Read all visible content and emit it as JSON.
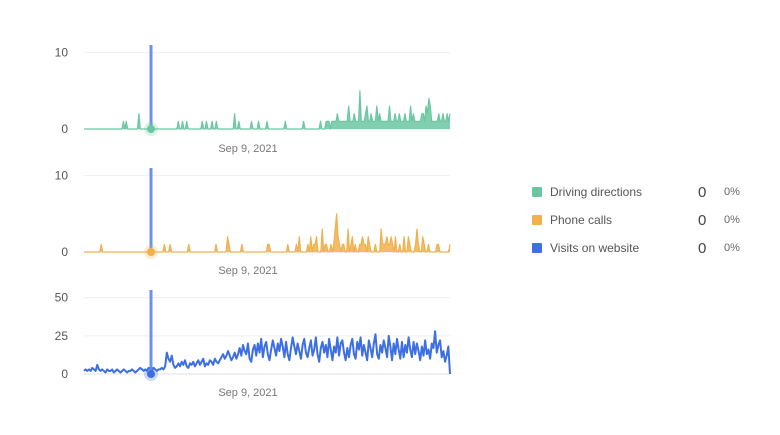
{
  "colors": {
    "driving": "#6cc6a2",
    "phone": "#f0b04e",
    "website": "#3d6fe3",
    "cursor": "#6b93e6"
  },
  "legend": [
    {
      "label": "Driving directions",
      "count": "0",
      "pct": "0%",
      "color": "#6cc6a2"
    },
    {
      "label": "Phone calls",
      "count": "0",
      "pct": "0%",
      "color": "#f0b04e"
    },
    {
      "label": "Visits on website",
      "count": "0",
      "pct": "0%",
      "color": "#3d6fe3"
    }
  ],
  "hover_date": "Sep 9, 2021",
  "chart_data": [
    {
      "type": "area",
      "series": [
        {
          "name": "Driving directions",
          "values": [
            0,
            0,
            0,
            0,
            0,
            0,
            0,
            0,
            0,
            0,
            0,
            0,
            0,
            0,
            0,
            0,
            0,
            0,
            0,
            0,
            0,
            0,
            0,
            0,
            0,
            0,
            0,
            0,
            1,
            0,
            1,
            0,
            0,
            0,
            0,
            0,
            0,
            0,
            0,
            2,
            0,
            0,
            0,
            0,
            0,
            0,
            0,
            0,
            0,
            0,
            0,
            0,
            0,
            0,
            0,
            0,
            0,
            0,
            0,
            0,
            0,
            0,
            0,
            0,
            0,
            0,
            0,
            1,
            0,
            0,
            1,
            0,
            0,
            1,
            0,
            0,
            0,
            0,
            0,
            0,
            0,
            0,
            0,
            0,
            1,
            0,
            0,
            1,
            0,
            0,
            0,
            1,
            0,
            0,
            1,
            0,
            0,
            0,
            0,
            0,
            0,
            0,
            0,
            0,
            0,
            0,
            0,
            2,
            0,
            0,
            1,
            0,
            0,
            0,
            0,
            0,
            0,
            0,
            0,
            1,
            0,
            0,
            0,
            0,
            1,
            0,
            0,
            0,
            0,
            0,
            1,
            0,
            0,
            0,
            0,
            0,
            0,
            0,
            0,
            0,
            0,
            0,
            0,
            1,
            0,
            0,
            0,
            0,
            0,
            0,
            0,
            0,
            0,
            0,
            0,
            0,
            1,
            0,
            0,
            0,
            0,
            0,
            0,
            0,
            0,
            0,
            0,
            0,
            1,
            0,
            0,
            0,
            1,
            1,
            1,
            0,
            1,
            1,
            1,
            1,
            2,
            1,
            1,
            1,
            1,
            1,
            1,
            1,
            3,
            1,
            1,
            1,
            2,
            1,
            1,
            1,
            5,
            1,
            1,
            1,
            2,
            3,
            1,
            1,
            2,
            1,
            1,
            1,
            3,
            1,
            2,
            1,
            1,
            1,
            1,
            1,
            1,
            3,
            1,
            1,
            1,
            2,
            1,
            1,
            2,
            1,
            1,
            1,
            2,
            1,
            1,
            1,
            3,
            1,
            2,
            1,
            1,
            1,
            1,
            1,
            2,
            2,
            1,
            3,
            2,
            4,
            3,
            1,
            1,
            1,
            1,
            1,
            2,
            1,
            1,
            2,
            1,
            1,
            2,
            1,
            2
          ]
        }
      ],
      "xlabel": "Sep 9, 2021",
      "yticks": [
        0,
        10
      ],
      "ylim": [
        0,
        11
      ]
    },
    {
      "type": "area",
      "series": [
        {
          "name": "Phone calls",
          "values": [
            0,
            0,
            0,
            0,
            0,
            0,
            0,
            0,
            0,
            0,
            0,
            0,
            1,
            0,
            0,
            0,
            0,
            0,
            0,
            0,
            0,
            0,
            0,
            0,
            0,
            0,
            0,
            0,
            0,
            0,
            0,
            0,
            0,
            0,
            0,
            0,
            0,
            0,
            0,
            0,
            0,
            0,
            0,
            0,
            0,
            0,
            0,
            0,
            0,
            0,
            0,
            0,
            0,
            0,
            0,
            0,
            1,
            0,
            0,
            0,
            1,
            0,
            0,
            0,
            0,
            0,
            0,
            0,
            0,
            0,
            0,
            0,
            0,
            1,
            0,
            0,
            0,
            0,
            0,
            0,
            0,
            0,
            0,
            0,
            0,
            0,
            0,
            0,
            0,
            0,
            0,
            0,
            1,
            0,
            0,
            0,
            0,
            0,
            0,
            0,
            2,
            1,
            0,
            0,
            0,
            0,
            0,
            0,
            0,
            0,
            1,
            0,
            0,
            0,
            0,
            0,
            0,
            0,
            0,
            0,
            0,
            0,
            0,
            0,
            0,
            0,
            0,
            0,
            1,
            1,
            0,
            0,
            0,
            0,
            0,
            0,
            0,
            0,
            0,
            0,
            0,
            0,
            1,
            0,
            0,
            0,
            0,
            0,
            1,
            0,
            2,
            0,
            0,
            0,
            0,
            0,
            1,
            0,
            2,
            0,
            1,
            1,
            2,
            0,
            0,
            0,
            3,
            0,
            1,
            1,
            0,
            0,
            1,
            0,
            1,
            3,
            5,
            2,
            1,
            0,
            1,
            1,
            0,
            0,
            3,
            0,
            1,
            2,
            0,
            1,
            0,
            0,
            1,
            1,
            2,
            1,
            1,
            0,
            2,
            1,
            0,
            0,
            0,
            1,
            0,
            0,
            0,
            3,
            1,
            1,
            1,
            2,
            1,
            1,
            2,
            1,
            0,
            2,
            0,
            0,
            1,
            0,
            0,
            2,
            0,
            0,
            2,
            1,
            0,
            0,
            0,
            1,
            3,
            1,
            0,
            0,
            2,
            1,
            0,
            0,
            1,
            0,
            0,
            0,
            0,
            0,
            1,
            1,
            0,
            0,
            0,
            0,
            0,
            0,
            0,
            1
          ]
        }
      ],
      "xlabel": "Sep 9, 2021",
      "yticks": [
        0,
        10
      ],
      "ylim": [
        0,
        11
      ]
    },
    {
      "type": "line",
      "series": [
        {
          "name": "Visits on website",
          "values": [
            2,
            3,
            2,
            3,
            2,
            4,
            3,
            2,
            6,
            3,
            2,
            3,
            2,
            1,
            3,
            2,
            2,
            3,
            1,
            2,
            3,
            2,
            1,
            2,
            3,
            2,
            1,
            2,
            2,
            3,
            2,
            1,
            2,
            3,
            4,
            3,
            2,
            3,
            2,
            4,
            3,
            2,
            4,
            3,
            2,
            3,
            3,
            4,
            3,
            5,
            14,
            10,
            8,
            12,
            6,
            4,
            5,
            7,
            5,
            8,
            6,
            9,
            5,
            4,
            7,
            6,
            8,
            5,
            7,
            9,
            6,
            8,
            10,
            5,
            7,
            6,
            9,
            8,
            6,
            10,
            8,
            7,
            9,
            11,
            13,
            10,
            12,
            15,
            12,
            9,
            11,
            14,
            10,
            13,
            17,
            12,
            19,
            15,
            13,
            20,
            10,
            8,
            16,
            19,
            12,
            20,
            14,
            23,
            11,
            18,
            21,
            13,
            9,
            16,
            22,
            17,
            12,
            20,
            15,
            23,
            18,
            11,
            21,
            13,
            9,
            17,
            24,
            18,
            13,
            20,
            15,
            10,
            19,
            23,
            14,
            11,
            17,
            22,
            12,
            16,
            24,
            13,
            8,
            17,
            21,
            14,
            19,
            11,
            23,
            16,
            9,
            18,
            14,
            24,
            12,
            20,
            22,
            14,
            9,
            17,
            11,
            19,
            23,
            13,
            10,
            21,
            16,
            24,
            12,
            19,
            14,
            9,
            22,
            17,
            11,
            20,
            26,
            13,
            10,
            19,
            14,
            22,
            17,
            11,
            25,
            18,
            9,
            20,
            13,
            23,
            16,
            10,
            21,
            11,
            19,
            14,
            24,
            16,
            11,
            21,
            13,
            20,
            15,
            9,
            18,
            12,
            22,
            13,
            16,
            10,
            20,
            17,
            28,
            14,
            19,
            22,
            11,
            15,
            8,
            12,
            18,
            0
          ]
        }
      ],
      "xlabel": "Sep 9, 2021",
      "yticks": [
        0,
        25,
        50
      ],
      "ylim": [
        0,
        55
      ]
    }
  ]
}
